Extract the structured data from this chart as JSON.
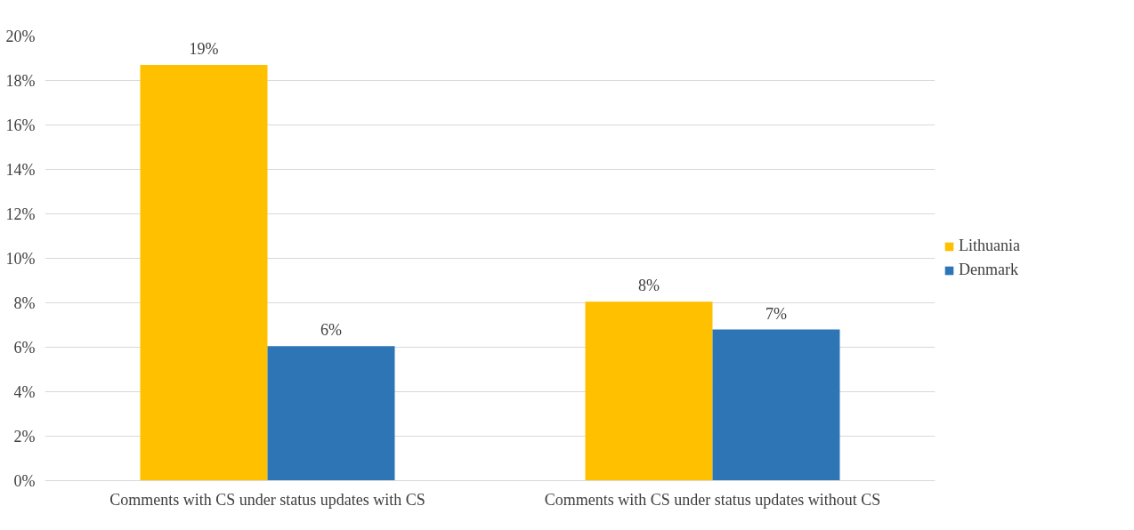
{
  "chart_data": {
    "type": "bar",
    "categories": [
      "Comments with CS under status updates with CS",
      "Comments with CS under status updates without CS"
    ],
    "series": [
      {
        "name": "Lithuania",
        "color": "#ffc000",
        "values": [
          18.7,
          8.05
        ],
        "value_labels": [
          "19%",
          "8%"
        ]
      },
      {
        "name": "Denmark",
        "color": "#2e75b6",
        "values": [
          6.05,
          6.8
        ],
        "value_labels": [
          "6%",
          "7%"
        ]
      }
    ],
    "ylim": [
      0,
      20
    ],
    "yticks": [
      {
        "value": 0,
        "label": "0%"
      },
      {
        "value": 2,
        "label": "2%"
      },
      {
        "value": 4,
        "label": "4%"
      },
      {
        "value": 6,
        "label": "6%"
      },
      {
        "value": 8,
        "label": "8%"
      },
      {
        "value": 10,
        "label": "10%"
      },
      {
        "value": 12,
        "label": "12%"
      },
      {
        "value": 14,
        "label": "14%"
      },
      {
        "value": 16,
        "label": "16%"
      },
      {
        "value": 18,
        "label": "18%"
      },
      {
        "value": 20,
        "label": "20%"
      }
    ],
    "grid": "y",
    "legend": "right"
  }
}
